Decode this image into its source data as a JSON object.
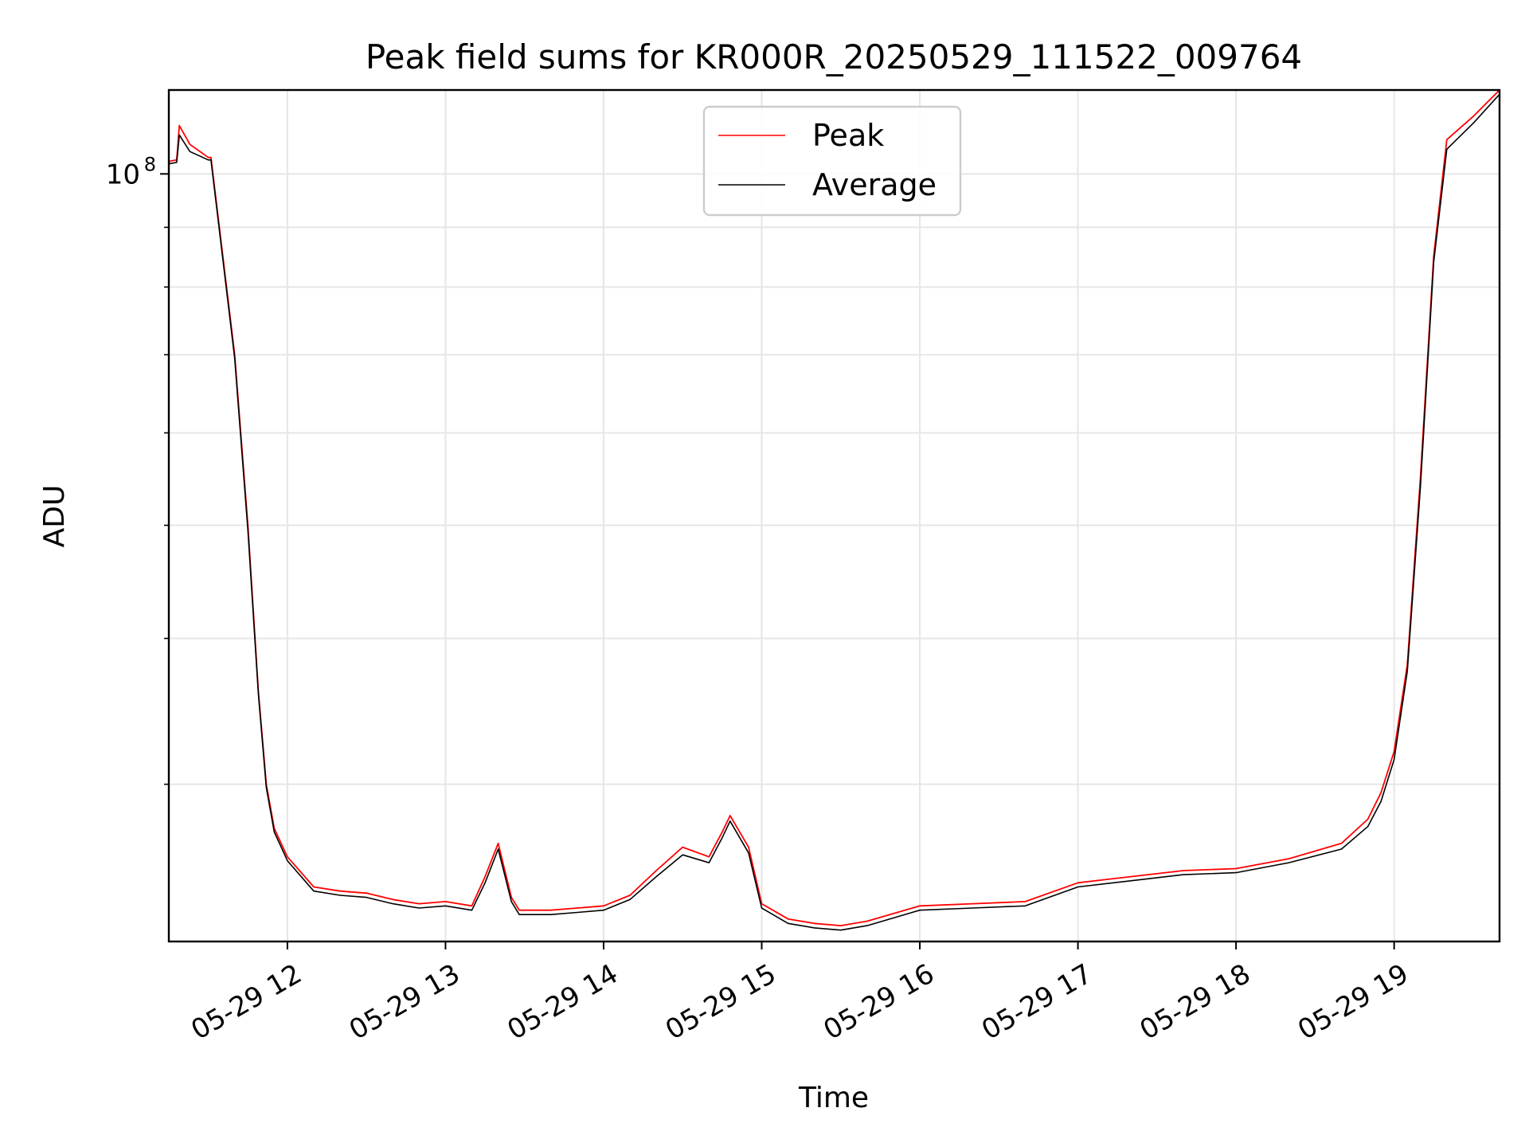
{
  "chart_data": {
    "type": "line",
    "title": "Peak field sums for KR000R_20250529_111522_009764",
    "xlabel": "Time",
    "ylabel": "ADU",
    "y_scale": "log",
    "grid": true,
    "legend_position": "top-center",
    "xlim": [
      "2025-05-29 11:15",
      "2025-05-29 19:40"
    ],
    "ylim": [
      22000000,
      118000000
    ],
    "x_ticks": [
      "05-29 12",
      "05-29 13",
      "05-29 14",
      "05-29 15",
      "05-29 16",
      "05-29 17",
      "05-29 18",
      "05-29 19"
    ],
    "y_ticks": [
      {
        "value": 100000000,
        "base": "10",
        "exp": "8"
      }
    ],
    "series": [
      {
        "name": "Peak",
        "color": "#ff0000",
        "x": [
          "2025-05-29 11:15",
          "2025-05-29 11:18",
          "2025-05-29 11:19",
          "2025-05-29 11:23",
          "2025-05-29 11:30",
          "2025-05-29 11:31",
          "2025-05-29 11:40",
          "2025-05-29 11:45",
          "2025-05-29 11:49",
          "2025-05-29 11:52",
          "2025-05-29 11:55",
          "2025-05-29 12:00",
          "2025-05-29 12:10",
          "2025-05-29 12:20",
          "2025-05-29 12:30",
          "2025-05-29 12:40",
          "2025-05-29 12:50",
          "2025-05-29 13:00",
          "2025-05-29 13:10",
          "2025-05-29 13:15",
          "2025-05-29 13:20",
          "2025-05-29 13:25",
          "2025-05-29 13:28",
          "2025-05-29 13:40",
          "2025-05-29 13:50",
          "2025-05-29 14:00",
          "2025-05-29 14:10",
          "2025-05-29 14:20",
          "2025-05-29 14:30",
          "2025-05-29 14:40",
          "2025-05-29 14:45",
          "2025-05-29 14:48",
          "2025-05-29 14:55",
          "2025-05-29 15:00",
          "2025-05-29 15:10",
          "2025-05-29 15:20",
          "2025-05-29 15:30",
          "2025-05-29 15:40",
          "2025-05-29 16:00",
          "2025-05-29 16:20",
          "2025-05-29 16:40",
          "2025-05-29 17:00",
          "2025-05-29 17:20",
          "2025-05-29 17:40",
          "2025-05-29 18:00",
          "2025-05-29 18:20",
          "2025-05-29 18:40",
          "2025-05-29 18:50",
          "2025-05-29 18:55",
          "2025-05-29 19:00",
          "2025-05-29 19:05",
          "2025-05-29 19:10",
          "2025-05-29 19:15",
          "2025-05-29 19:20",
          "2025-05-29 19:30",
          "2025-05-29 19:40"
        ],
        "values": [
          102500000,
          102800000,
          110000000,
          106000000,
          103300000,
          103300000,
          70000000,
          50000000,
          36000000,
          30000000,
          27500000,
          26000000,
          24500000,
          24300000,
          24200000,
          23900000,
          23700000,
          23800000,
          23600000,
          25000000,
          26700000,
          24000000,
          23400000,
          23400000,
          23500000,
          23600000,
          24100000,
          25300000,
          26500000,
          26000000,
          27300000,
          28200000,
          26500000,
          23700000,
          23000000,
          22800000,
          22700000,
          22900000,
          23600000,
          23700000,
          23800000,
          24700000,
          25000000,
          25300000,
          25400000,
          25900000,
          26700000,
          28000000,
          29500000,
          32000000,
          38000000,
          55000000,
          85000000,
          107000000,
          112000000,
          118000000
        ]
      },
      {
        "name": "Average",
        "color": "#000000",
        "x": [
          "2025-05-29 11:15",
          "2025-05-29 11:18",
          "2025-05-29 11:19",
          "2025-05-29 11:23",
          "2025-05-29 11:30",
          "2025-05-29 11:31",
          "2025-05-29 11:40",
          "2025-05-29 11:45",
          "2025-05-29 11:49",
          "2025-05-29 11:52",
          "2025-05-29 11:55",
          "2025-05-29 12:00",
          "2025-05-29 12:10",
          "2025-05-29 12:20",
          "2025-05-29 12:30",
          "2025-05-29 12:40",
          "2025-05-29 12:50",
          "2025-05-29 13:00",
          "2025-05-29 13:10",
          "2025-05-29 13:15",
          "2025-05-29 13:20",
          "2025-05-29 13:25",
          "2025-05-29 13:28",
          "2025-05-29 13:40",
          "2025-05-29 13:50",
          "2025-05-29 14:00",
          "2025-05-29 14:10",
          "2025-05-29 14:20",
          "2025-05-29 14:30",
          "2025-05-29 14:40",
          "2025-05-29 14:45",
          "2025-05-29 14:48",
          "2025-05-29 14:55",
          "2025-05-29 15:00",
          "2025-05-29 15:10",
          "2025-05-29 15:20",
          "2025-05-29 15:30",
          "2025-05-29 15:40",
          "2025-05-29 16:00",
          "2025-05-29 16:20",
          "2025-05-29 16:40",
          "2025-05-29 17:00",
          "2025-05-29 17:20",
          "2025-05-29 17:40",
          "2025-05-29 18:00",
          "2025-05-29 18:20",
          "2025-05-29 18:40",
          "2025-05-29 18:50",
          "2025-05-29 18:55",
          "2025-05-29 19:00",
          "2025-05-29 19:05",
          "2025-05-29 19:10",
          "2025-05-29 19:15",
          "2025-05-29 19:20",
          "2025-05-29 19:30",
          "2025-05-29 19:40"
        ],
        "values": [
          102000000,
          102300000,
          108000000,
          104500000,
          102800000,
          102800000,
          69500000,
          49500000,
          35800000,
          29800000,
          27300000,
          25800000,
          24300000,
          24100000,
          24000000,
          23700000,
          23500000,
          23600000,
          23400000,
          24700000,
          26400000,
          23800000,
          23200000,
          23200000,
          23300000,
          23400000,
          23900000,
          25000000,
          26100000,
          25700000,
          27000000,
          27900000,
          26200000,
          23500000,
          22800000,
          22600000,
          22500000,
          22700000,
          23400000,
          23500000,
          23600000,
          24500000,
          24800000,
          25100000,
          25200000,
          25700000,
          26400000,
          27600000,
          29000000,
          31500000,
          37500000,
          54000000,
          84000000,
          105000000,
          110500000,
          117000000
        ]
      }
    ]
  }
}
